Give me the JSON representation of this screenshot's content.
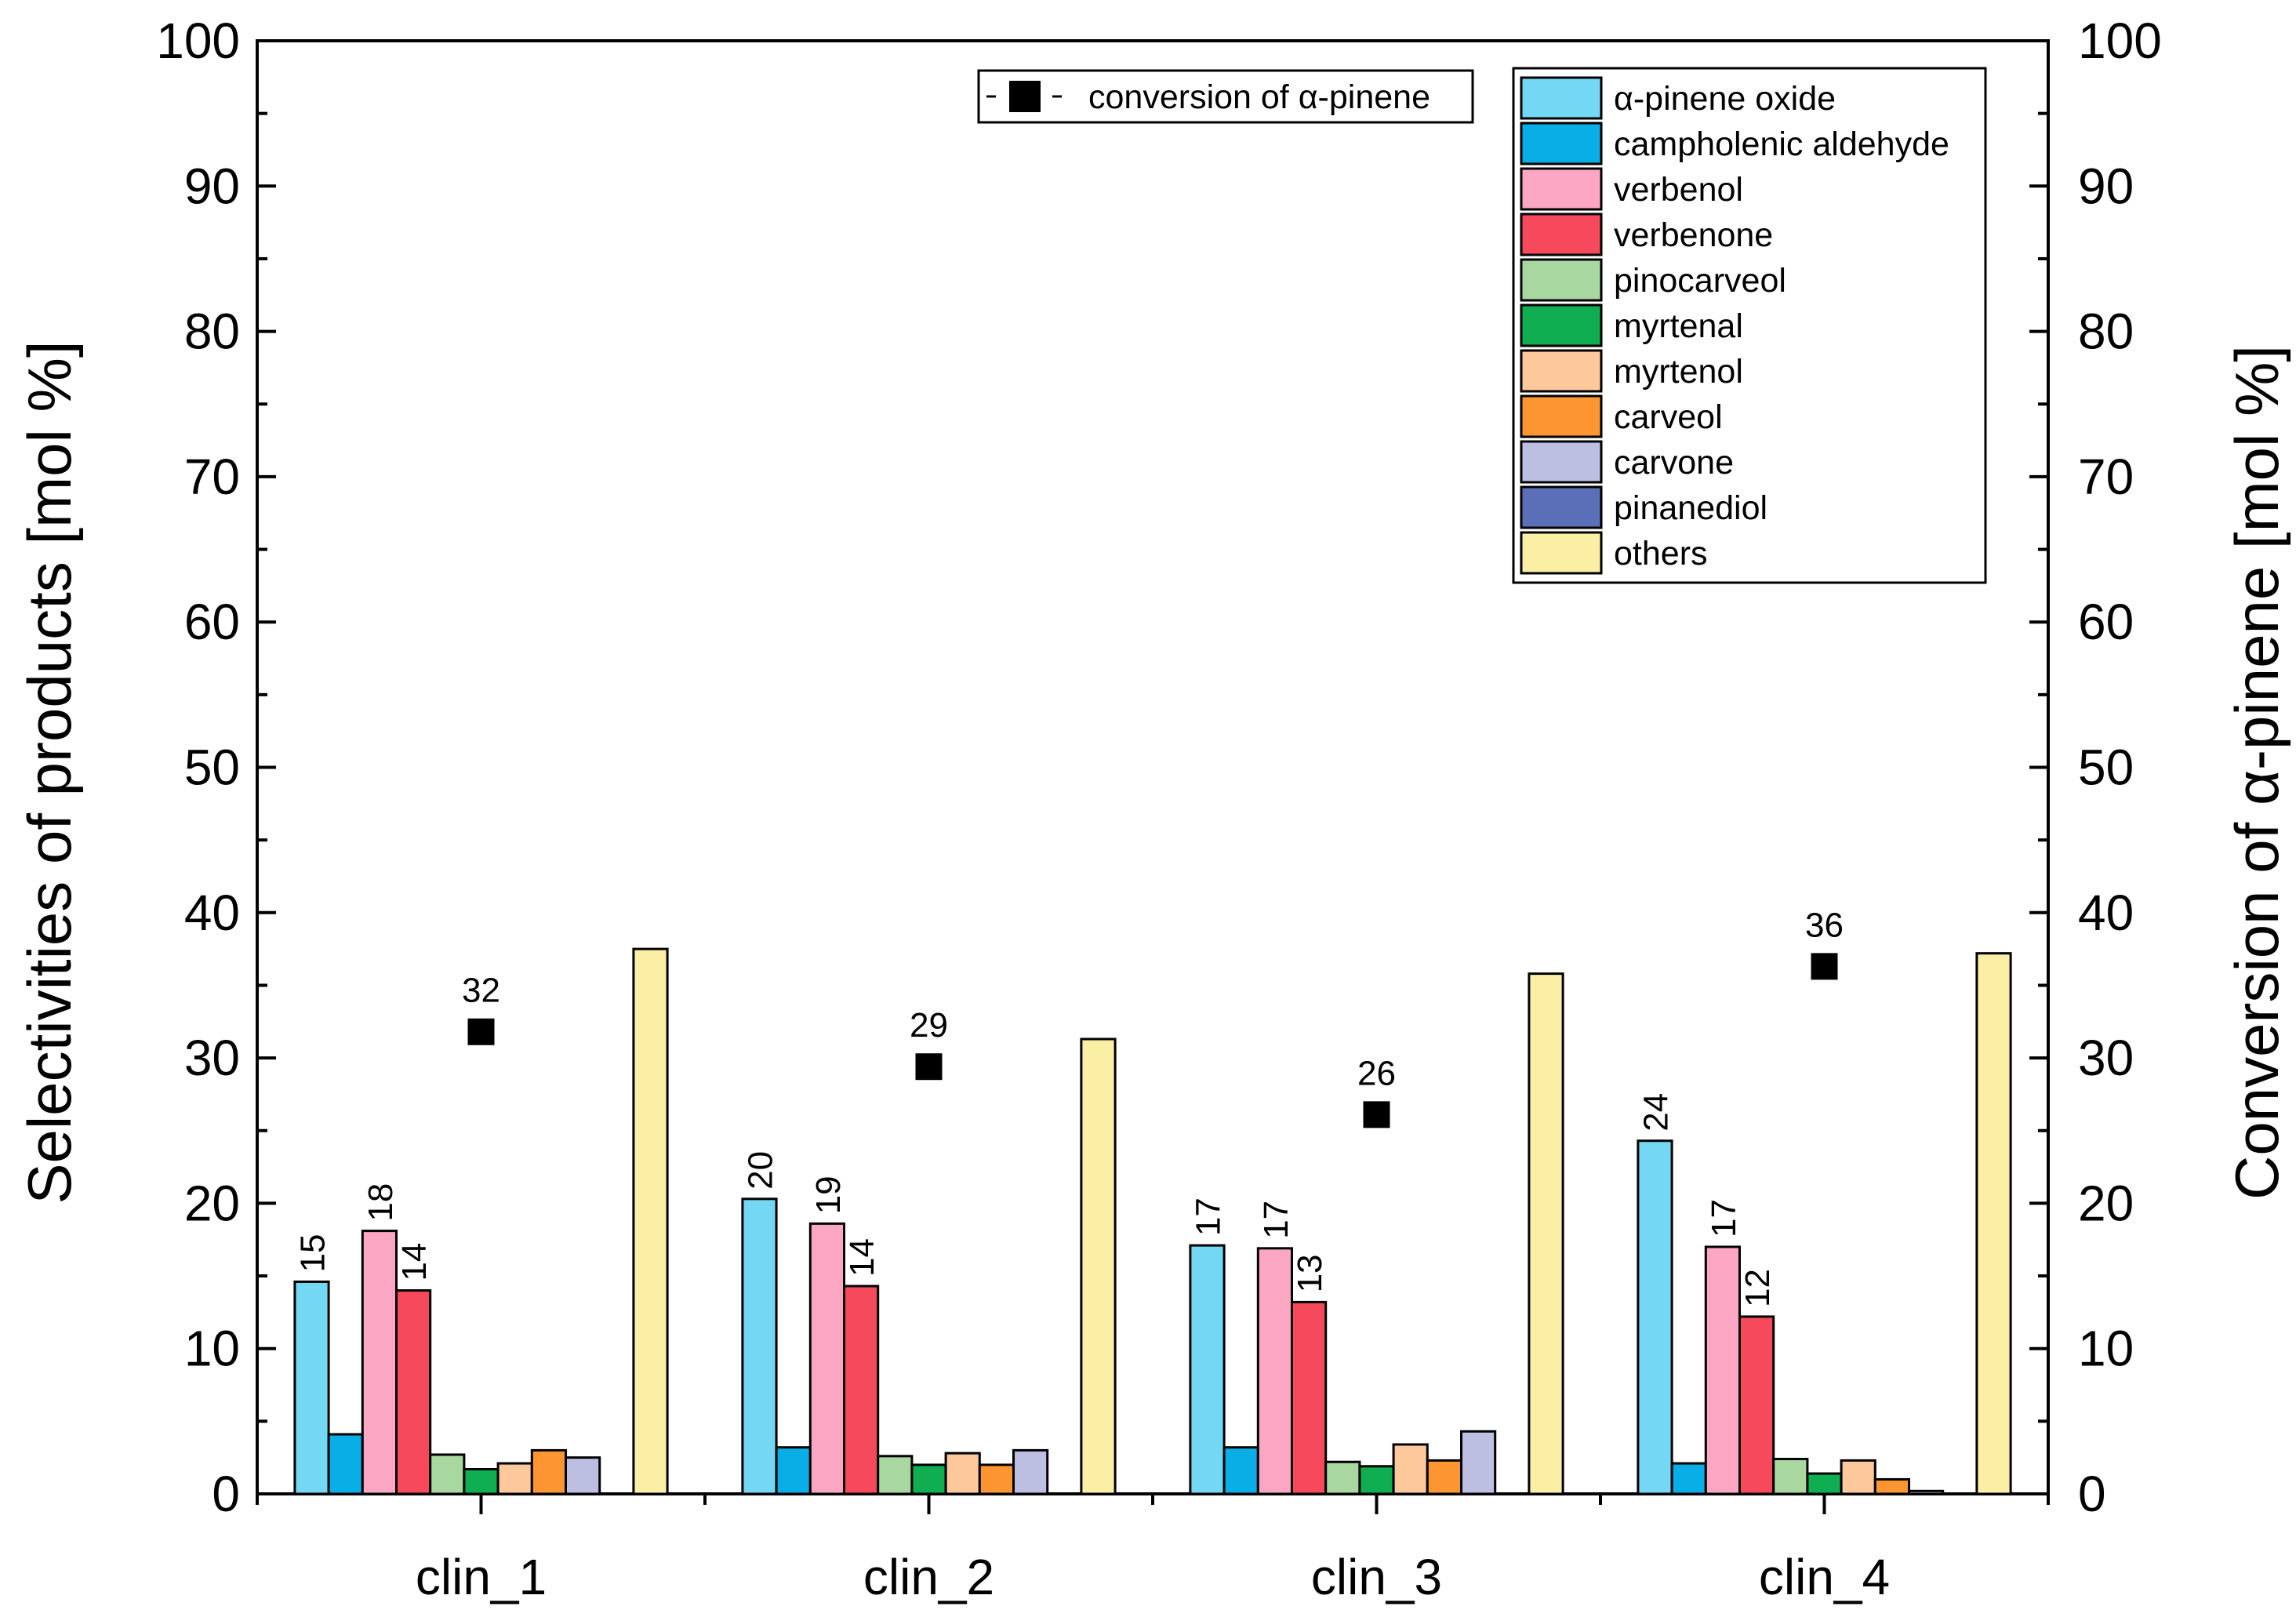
{
  "chart_data": {
    "type": "bar",
    "title": "",
    "xlabel": "",
    "ylabel": "Selectivities of products [mol %]",
    "y2label": "Conversion of α-pinene [mol %]",
    "ylim": [
      0,
      100
    ],
    "y2lim": [
      0,
      100
    ],
    "yticks": [
      "0",
      "10",
      "20",
      "30",
      "40",
      "50",
      "60",
      "70",
      "80",
      "90",
      "100"
    ],
    "categories": [
      "clin_1",
      "clin_2",
      "clin_3",
      "clin_4"
    ],
    "series": [
      {
        "name": "α-pinene oxide",
        "color": "#74D7F3",
        "values": [
          14.6,
          20.3,
          17.1,
          24.3
        ],
        "labels": [
          "15",
          "20",
          "17",
          "24"
        ]
      },
      {
        "name": "campholenic aldehyde",
        "color": "#0AAEE6",
        "values": [
          4.1,
          3.2,
          3.2,
          2.1
        ],
        "labels": [
          "",
          "",
          "",
          ""
        ]
      },
      {
        "name": "verbenol",
        "color": "#FBA6C2",
        "values": [
          18.1,
          18.6,
          16.9,
          17.0
        ],
        "labels": [
          "18",
          "19",
          "17",
          "17"
        ]
      },
      {
        "name": "verbenone",
        "color": "#F6495C",
        "values": [
          14.0,
          14.3,
          13.2,
          12.2
        ],
        "labels": [
          "14",
          "14",
          "13",
          "12"
        ]
      },
      {
        "name": "pinocarveol",
        "color": "#A8D8A0",
        "values": [
          2.7,
          2.6,
          2.2,
          2.4
        ],
        "labels": [
          "",
          "",
          "",
          ""
        ]
      },
      {
        "name": "myrtenal",
        "color": "#0FAE50",
        "values": [
          1.7,
          2.0,
          1.9,
          1.4
        ],
        "labels": [
          "",
          "",
          "",
          ""
        ]
      },
      {
        "name": "myrtenol",
        "color": "#FDC89C",
        "values": [
          2.1,
          2.8,
          3.4,
          2.3
        ],
        "labels": [
          "",
          "",
          "",
          ""
        ]
      },
      {
        "name": "carveol",
        "color": "#FD9630",
        "values": [
          3.0,
          2.0,
          2.3,
          1.0
        ],
        "labels": [
          "",
          "",
          "",
          ""
        ]
      },
      {
        "name": "carvone",
        "color": "#BCBEE2",
        "values": [
          2.5,
          3.0,
          4.3,
          0.2
        ],
        "labels": [
          "",
          "",
          "",
          ""
        ]
      },
      {
        "name": "pinanediol",
        "color": "#5B6EB8",
        "values": [
          0,
          0,
          0,
          0
        ],
        "labels": [
          "",
          "",
          "",
          ""
        ]
      },
      {
        "name": "others",
        "color": "#FBEFA6",
        "values": [
          37.5,
          31.3,
          35.8,
          37.2
        ],
        "labels": [
          "",
          "",
          "",
          ""
        ]
      }
    ],
    "conversion": {
      "name": "conversion of α-pinene",
      "marker": "square",
      "color": "#000000",
      "values": [
        31.8,
        29.4,
        26.1,
        36.3
      ],
      "labels": [
        "32",
        "29",
        "26",
        "36"
      ]
    },
    "legend_position": "top-right"
  }
}
